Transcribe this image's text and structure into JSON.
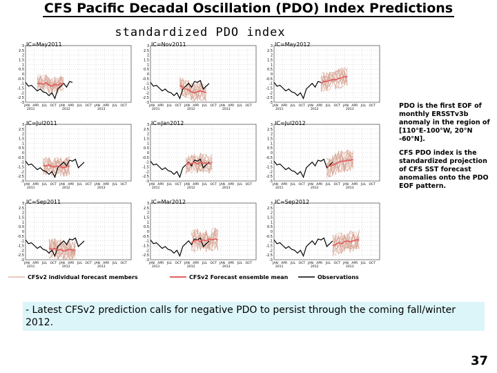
{
  "title": "CFS Pacific Decadal Oscillation (PDO) Index Predictions",
  "figure_title": "standardized PDO index",
  "description": [
    "PDO is the first EOF of monthly ERSSTv3b anomaly in the region of [110°E-100°W, 20°N -60°N].",
    "CFS PDO index is the standardized projection of CFS SST forecast anomalies onto the PDO EOF pattern."
  ],
  "note": "- Latest CFSv2 prediction calls for negative PDO to persist through the coming fall/winter 2012.",
  "page_number": "37",
  "colors": {
    "members": "#d8a898",
    "ensemble_mean": "#e06060",
    "observations": "#000000",
    "grid": "#bdbdbd"
  },
  "chart_data": {
    "type": "line",
    "ylim": [
      -3,
      3
    ],
    "yticks": [
      "3",
      "2.5",
      "2",
      "1.5",
      "1",
      "0.5",
      "0",
      "-0.5",
      "-1",
      "-1.5",
      "-2",
      "-2.5",
      "-3"
    ],
    "xticks": [
      "JAN",
      "APR",
      "JUL",
      "OCT",
      "JAN",
      "APR",
      "JUL",
      "OCT",
      "JAN",
      "APR",
      "JUL",
      "OCT"
    ],
    "year_labels": [
      "2011",
      "2012",
      "2013"
    ],
    "legend": {
      "members": "CFSv2 individual forecast members",
      "mean": "CFSv2 Forecast ensemble mean",
      "obs": "Observations"
    },
    "observations": [
      -0.9,
      -1.3,
      -1.2,
      -1.5,
      -1.8,
      -1.6,
      -1.9,
      -2.0,
      -2.3,
      -2.0,
      -2.6,
      -1.6,
      -1.3,
      -1.0,
      -1.4,
      -0.8,
      -0.9,
      -0.7,
      -1.6,
      -1.3,
      -1.0
    ],
    "panels": [
      {
        "label": "IC=May2011",
        "obs_end": 16,
        "start": 4,
        "mean": [
          -1.0,
          -1.0,
          -1.1,
          -0.9,
          -1.2,
          -1.3,
          -1.1,
          -1.2,
          -1.0,
          -1.1
        ],
        "spread": 0.9
      },
      {
        "label": "IC=Nov2011",
        "obs_end": 20,
        "start": 10,
        "mean": [
          -1.2,
          -1.4,
          -1.6,
          -1.7,
          -1.9,
          -2.0,
          -1.9,
          -1.8,
          -1.9,
          -2.0
        ],
        "spread": 1.0
      },
      {
        "label": "IC=May2012",
        "obs_end": 16,
        "start": 16,
        "mean": [
          -1.0,
          -0.8,
          -0.8,
          -0.7,
          -0.6,
          -0.6,
          -0.5,
          -0.4,
          -0.3,
          -0.3
        ],
        "spread": 1.1
      },
      {
        "label": "IC=Jul2011",
        "obs_end": 20,
        "start": 6,
        "mean": [
          -1.4,
          -1.4,
          -1.3,
          -1.5,
          -1.5,
          -1.4,
          -1.5,
          -1.6,
          -1.5,
          -1.4
        ],
        "spread": 1.0
      },
      {
        "label": "IC=Jan2012",
        "obs_end": 20,
        "start": 12,
        "mean": [
          -1.3,
          -1.1,
          -1.2,
          -1.0,
          -1.2,
          -1.0,
          -1.1,
          -1.1,
          -1.2,
          -1.0
        ],
        "spread": 1.0
      },
      {
        "label": "IC=Jul2012",
        "obs_end": 20,
        "start": 18,
        "mean": [
          -1.5,
          -1.4,
          -1.3,
          -1.2,
          -1.0,
          -0.9,
          -0.9,
          -0.8,
          -0.8,
          -0.7
        ],
        "spread": 1.2
      },
      {
        "label": "IC=Sep2011",
        "obs_end": 20,
        "start": 8,
        "mean": [
          -1.8,
          -1.9,
          -1.8,
          -2.0,
          -1.9,
          -2.1,
          -2.0,
          -1.9,
          -2.0,
          -2.0
        ],
        "spread": 1.1
      },
      {
        "label": "IC=Mar2012",
        "obs_end": 20,
        "start": 14,
        "mean": [
          -1.2,
          -1.0,
          -0.9,
          -1.1,
          -0.9,
          -1.0,
          -0.8,
          -0.9,
          -0.8,
          -0.9
        ],
        "spread": 1.2
      },
      {
        "label": "IC=Sep2012",
        "obs_end": 20,
        "start": 20,
        "mean": [
          -1.5,
          -1.4,
          -1.2,
          -1.3,
          -1.1,
          -1.0,
          -1.1,
          -1.0,
          -0.9,
          -0.9
        ],
        "spread": 1.2
      }
    ]
  }
}
